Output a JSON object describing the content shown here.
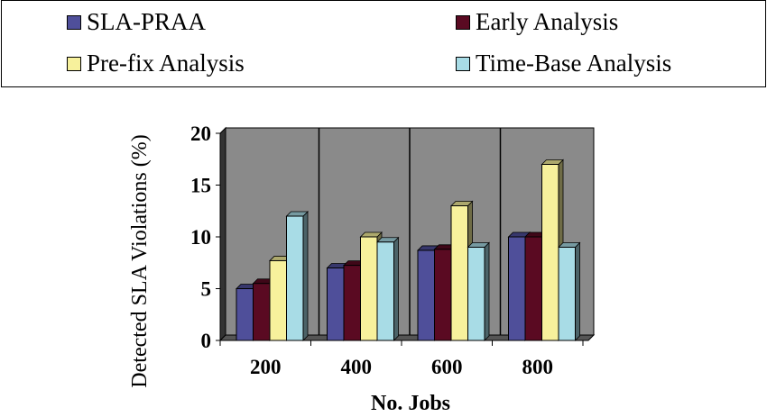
{
  "chart_data": {
    "type": "bar",
    "categories": [
      "200",
      "400",
      "600",
      "800"
    ],
    "series": [
      {
        "name": "SLA-PRAA",
        "values": [
          5,
          7,
          8.7,
          10
        ],
        "color": "#4f4f9a"
      },
      {
        "name": "Early Analysis",
        "values": [
          5.5,
          7.25,
          8.8,
          10
        ],
        "color": "#5a0a22"
      },
      {
        "name": "Pre-fix Analysis",
        "values": [
          7.7,
          10,
          13,
          17
        ],
        "color": "#f7f19c"
      },
      {
        "name": "Time-Base Analysis",
        "values": [
          12,
          9.5,
          9,
          9
        ],
        "color": "#a8dce6"
      }
    ],
    "xlabel": "No. Jobs",
    "ylabel": "Detected SLA Violations (%)",
    "ylim": [
      0,
      20
    ],
    "yticks": [
      "0",
      "5",
      "10",
      "15",
      "20"
    ],
    "grid": "vertical category separators",
    "legend": "top",
    "wall_color": "#8a8a8a"
  }
}
